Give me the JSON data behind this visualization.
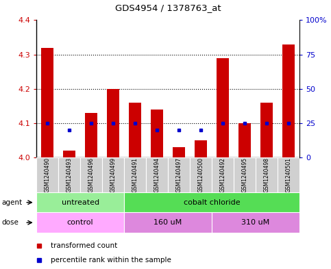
{
  "title": "GDS4954 / 1378763_at",
  "samples": [
    "GSM1240490",
    "GSM1240493",
    "GSM1240496",
    "GSM1240499",
    "GSM1240491",
    "GSM1240494",
    "GSM1240497",
    "GSM1240500",
    "GSM1240492",
    "GSM1240495",
    "GSM1240498",
    "GSM1240501"
  ],
  "transformed_count": [
    4.32,
    4.02,
    4.13,
    4.2,
    4.16,
    4.14,
    4.03,
    4.05,
    4.29,
    4.1,
    4.16,
    4.33
  ],
  "percentile_rank": [
    25,
    20,
    25,
    25,
    25,
    20,
    20,
    20,
    25,
    25,
    25,
    25
  ],
  "ylim_left": [
    4.0,
    4.4
  ],
  "ylim_right": [
    0,
    100
  ],
  "yticks_left": [
    4.0,
    4.1,
    4.2,
    4.3,
    4.4
  ],
  "yticks_right": [
    0,
    25,
    50,
    75,
    100
  ],
  "bar_color": "#cc0000",
  "dot_color": "#0000cc",
  "base_value": 4.0,
  "agent_groups": [
    {
      "label": "untreated",
      "start": 0,
      "end": 4,
      "color": "#99ee99"
    },
    {
      "label": "cobalt chloride",
      "start": 4,
      "end": 12,
      "color": "#55dd55"
    }
  ],
  "dose_groups": [
    {
      "label": "control",
      "start": 0,
      "end": 4,
      "color": "#ffaaff"
    },
    {
      "label": "160 uM",
      "start": 4,
      "end": 8,
      "color": "#dd88dd"
    },
    {
      "label": "310 uM",
      "start": 8,
      "end": 12,
      "color": "#dd88dd"
    }
  ],
  "legend_items": [
    {
      "label": "transformed count",
      "color": "#cc0000"
    },
    {
      "label": "percentile rank within the sample",
      "color": "#0000cc"
    }
  ],
  "agent_label": "agent",
  "dose_label": "dose",
  "tick_label_color_left": "#cc0000",
  "tick_label_color_right": "#0000cc",
  "grid_linestyle": "dotted"
}
